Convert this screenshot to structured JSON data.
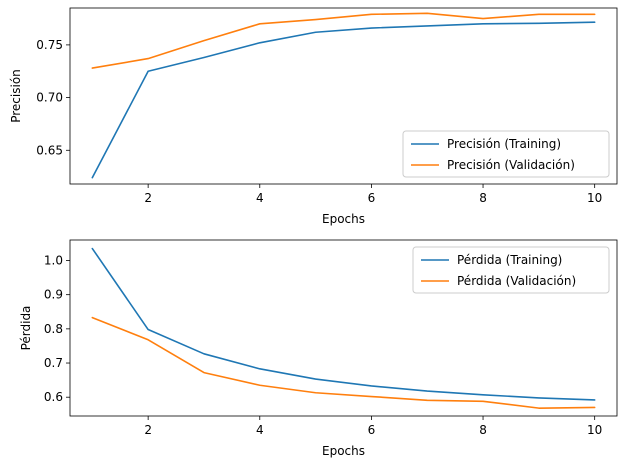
{
  "chart_data": [
    {
      "type": "line",
      "title": "",
      "xlabel": "Epochs",
      "ylabel": "Precisión",
      "xlim": [
        0.6,
        10.4
      ],
      "ylim": [
        0.618,
        0.785
      ],
      "xticks": [
        2,
        4,
        6,
        8,
        10
      ],
      "yticks": [
        0.65,
        0.7,
        0.75
      ],
      "ytick_labels": [
        "0.65",
        "0.70",
        "0.75"
      ],
      "grid": false,
      "legend_position": "lower-right",
      "x": [
        1,
        2,
        3,
        4,
        5,
        6,
        7,
        8,
        9,
        10
      ],
      "series": [
        {
          "name": "Precisión (Training)",
          "color": "#1f77b4",
          "values": [
            0.624,
            0.725,
            0.738,
            0.752,
            0.762,
            0.766,
            0.768,
            0.77,
            0.7705,
            0.7715
          ]
        },
        {
          "name": "Precisión (Validación)",
          "color": "#ff7f0e",
          "values": [
            0.728,
            0.737,
            0.754,
            0.77,
            0.774,
            0.779,
            0.78,
            0.775,
            0.779,
            0.779
          ]
        }
      ]
    },
    {
      "type": "line",
      "title": "",
      "xlabel": "Epochs",
      "ylabel": "Pérdida",
      "xlim": [
        0.6,
        10.4
      ],
      "ylim": [
        0.545,
        1.06
      ],
      "xticks": [
        2,
        4,
        6,
        8,
        10
      ],
      "yticks": [
        0.6,
        0.7,
        0.8,
        0.9,
        1.0
      ],
      "ytick_labels": [
        "0.6",
        "0.7",
        "0.8",
        "0.9",
        "1.0"
      ],
      "grid": false,
      "legend_position": "top-right",
      "x": [
        1,
        2,
        3,
        4,
        5,
        6,
        7,
        8,
        9,
        10
      ],
      "series": [
        {
          "name": "Pérdida (Training)",
          "color": "#1f77b4",
          "values": [
            1.035,
            0.798,
            0.727,
            0.683,
            0.653,
            0.633,
            0.618,
            0.607,
            0.598,
            0.592
          ]
        },
        {
          "name": "Pérdida (Validación)",
          "color": "#ff7f0e",
          "values": [
            0.833,
            0.768,
            0.672,
            0.635,
            0.613,
            0.602,
            0.591,
            0.588,
            0.568,
            0.57
          ]
        }
      ]
    }
  ]
}
